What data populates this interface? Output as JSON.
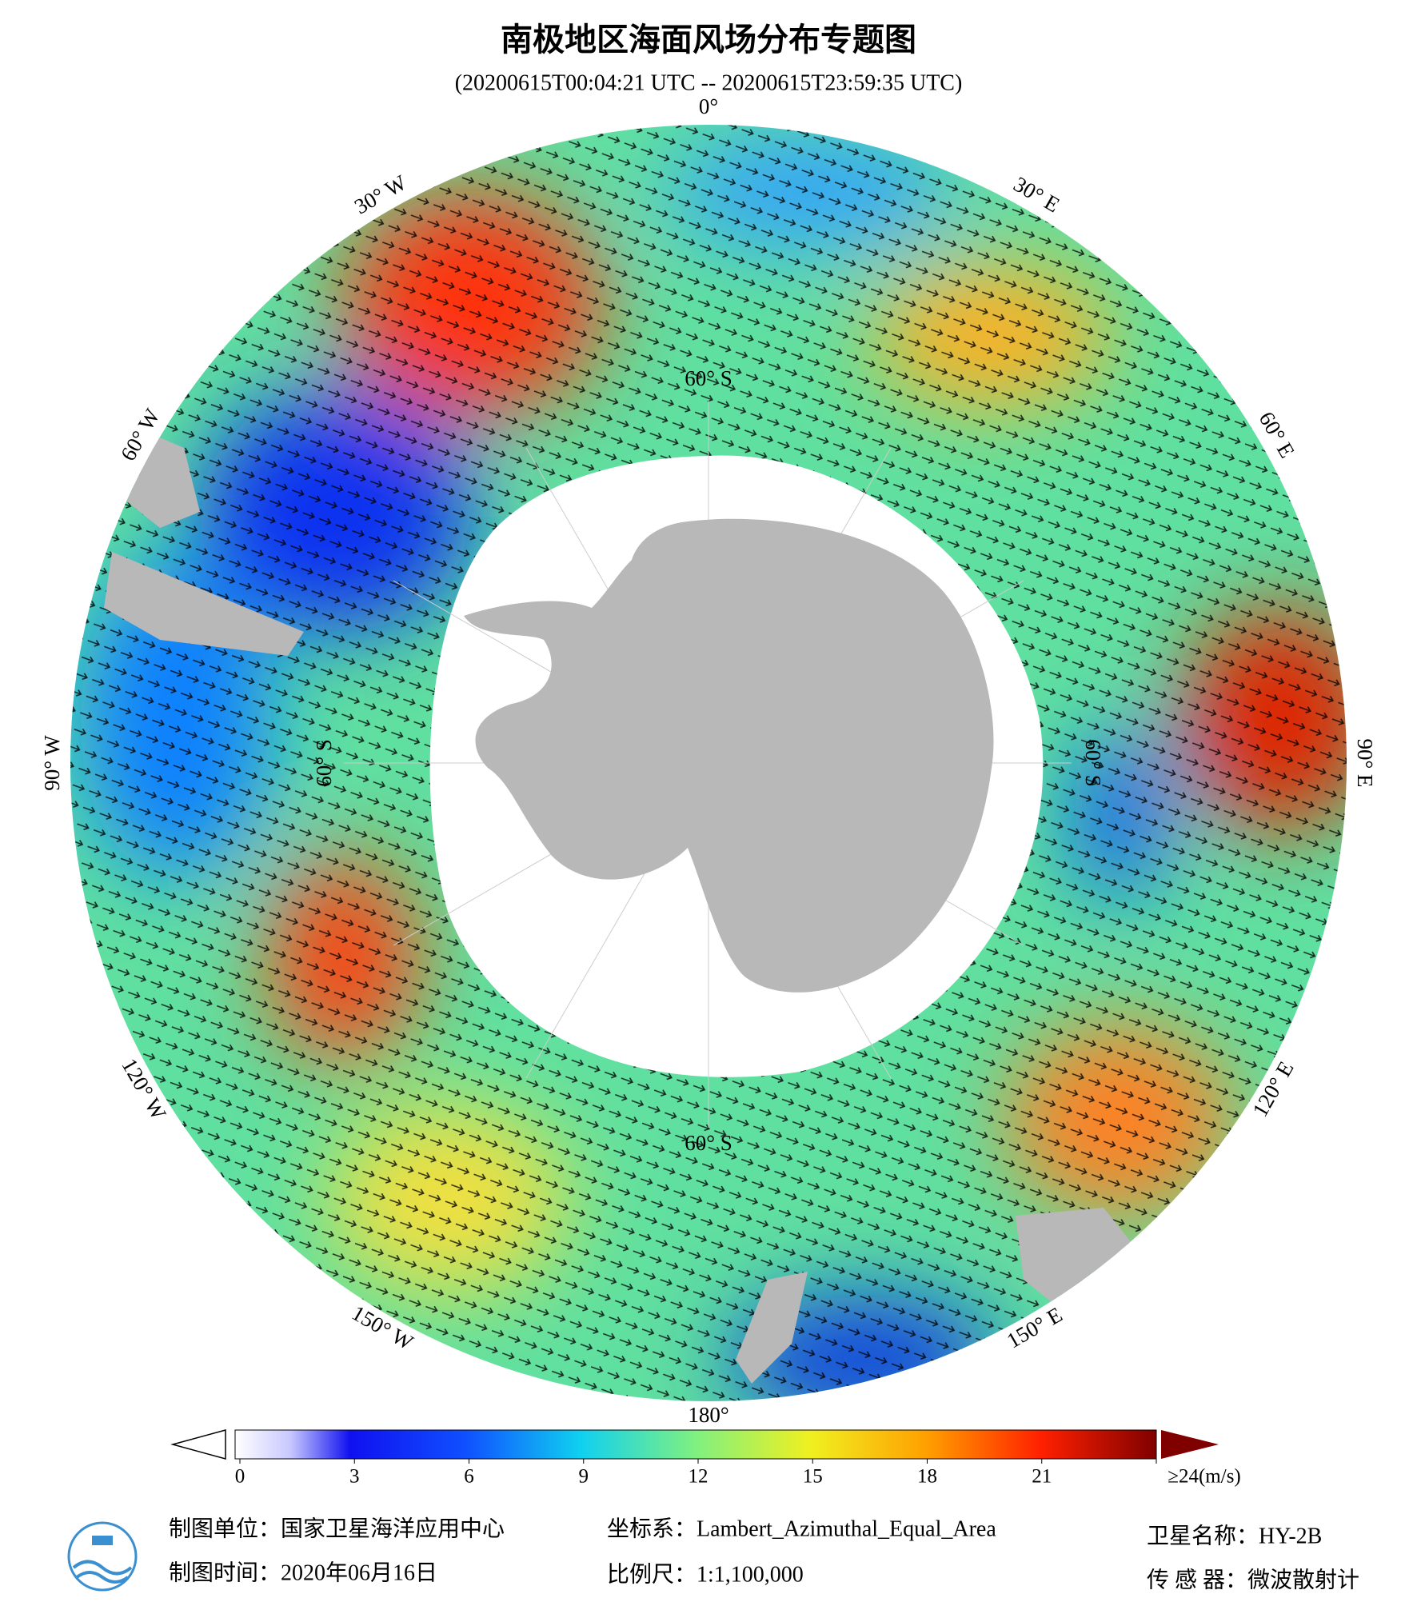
{
  "header": {
    "title": "南极地区海面风场分布专题图",
    "subtitle": "(20200615T00:04:21 UTC -- 20200615T23:59:35 UTC)"
  },
  "map": {
    "lon_labels": [
      "0°",
      "30° E",
      "60° E",
      "90° E",
      "120° E",
      "150° E",
      "180°",
      "150° W",
      "120° W",
      "90° W",
      "60° W",
      "30° W"
    ],
    "lat_labels": [
      "60° S",
      "60° S",
      "60° S",
      "60° S"
    ]
  },
  "colorbar": {
    "range": [
      0,
      24
    ],
    "ticks": [
      0,
      3,
      6,
      9,
      12,
      15,
      18,
      21,
      {
        "value": 24,
        "label": "≥24(m/s)"
      }
    ]
  },
  "footer": {
    "unit": "制图单位：国家卫星海洋应用中心",
    "date": "制图时间：2020年06月16日",
    "projection": "坐标系：Lambert_Azimuthal_Equal_Area",
    "scale": "比例尺：1:1,100,000",
    "satellite": "卫星名称：HY-2B",
    "sensor": "传 感 器：微波散射计"
  }
}
